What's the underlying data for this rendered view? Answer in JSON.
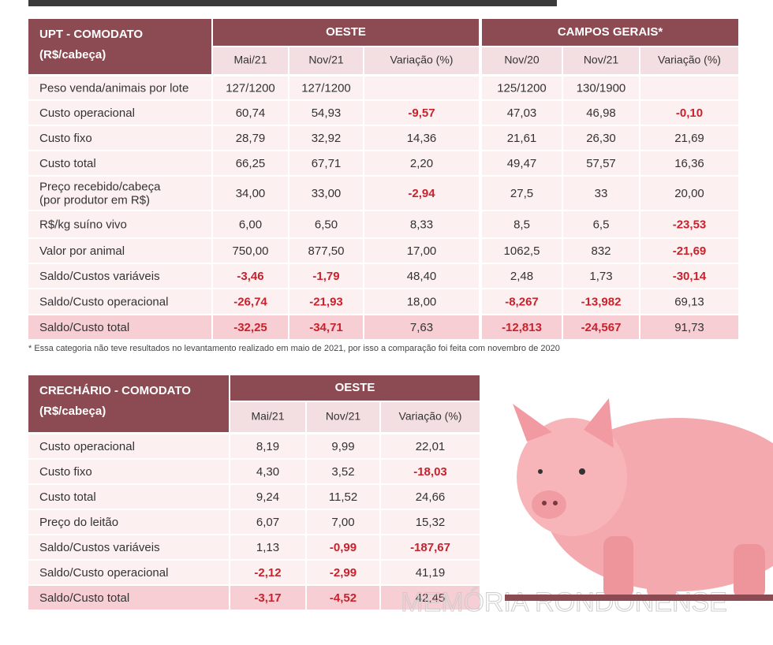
{
  "table1": {
    "title_lines": [
      "UPT - COMODATO",
      "(R$/cabeça)"
    ],
    "groups": [
      "OESTE",
      "CAMPOS GERAIS*"
    ],
    "columns": [
      "Mai/21",
      "Nov/21",
      "Variação (%)",
      "Nov/20",
      "Nov/21",
      "Variação (%)"
    ],
    "rows": [
      {
        "label": [
          "Peso venda/animais por lote"
        ],
        "cells": [
          "127/1200",
          "127/1200",
          null,
          "125/1200",
          "130/1900",
          null
        ]
      },
      {
        "label": [
          "Custo operacional"
        ],
        "cells": [
          "60,74",
          "54,93",
          "-9,57",
          "47,03",
          "46,98",
          "-0,10"
        ]
      },
      {
        "label": [
          "Custo fixo"
        ],
        "cells": [
          "28,79",
          "32,92",
          "14,36",
          "21,61",
          "26,30",
          "21,69"
        ]
      },
      {
        "label": [
          "Custo total"
        ],
        "cells": [
          "66,25",
          "67,71",
          "2,20",
          "49,47",
          "57,57",
          "16,36"
        ]
      },
      {
        "label": [
          "Preço recebido/cabeça",
          "(por produtor em R$)"
        ],
        "cells": [
          "34,00",
          "33,00",
          "-2,94",
          "27,5",
          "33",
          "20,00"
        ]
      },
      {
        "label": [
          "R$/kg suíno vivo"
        ],
        "cells": [
          "6,00",
          "6,50",
          "8,33",
          "8,5",
          "6,5",
          "-23,53"
        ]
      },
      {
        "label": [
          "Valor por animal"
        ],
        "cells": [
          "750,00",
          "877,50",
          "17,00",
          "1062,5",
          "832",
          "-21,69"
        ]
      },
      {
        "label": [
          "Saldo/Custos variáveis"
        ],
        "cells": [
          "-3,46",
          "-1,79",
          "48,40",
          "2,48",
          "1,73",
          "-30,14"
        ]
      },
      {
        "label": [
          "Saldo/Custo operacional"
        ],
        "cells": [
          "-26,74",
          "-21,93",
          "18,00",
          "-8,267",
          "-13,982",
          "69,13"
        ]
      },
      {
        "label": [
          "Saldo/Custo total"
        ],
        "cells": [
          "-32,25",
          "-34,71",
          "7,63",
          "-12,813",
          "-24,567",
          "91,73"
        ]
      }
    ]
  },
  "footnote": "* Essa categoria não teve resultados no levantamento realizado em maio de 2021, por isso a comparação foi feita com novembro de 2020",
  "table2": {
    "title_lines": [
      "CRECHÁRIO - COMODATO",
      "(R$/cabeça)"
    ],
    "groups": [
      "OESTE"
    ],
    "columns": [
      "Mai/21",
      "Nov/21",
      "Variação (%)"
    ],
    "rows": [
      {
        "label": [
          "Custo operacional"
        ],
        "cells": [
          "8,19",
          "9,99",
          "22,01"
        ]
      },
      {
        "label": [
          "Custo fixo"
        ],
        "cells": [
          "4,30",
          "3,52",
          "-18,03"
        ]
      },
      {
        "label": [
          "Custo total"
        ],
        "cells": [
          "9,24",
          "11,52",
          "24,66"
        ]
      },
      {
        "label": [
          "Preço do leitão"
        ],
        "cells": [
          "6,07",
          "7,00",
          "15,32"
        ]
      },
      {
        "label": [
          "Saldo/Custos variáveis"
        ],
        "cells": [
          "1,13",
          "-0,99",
          "-187,67"
        ]
      },
      {
        "label": [
          "Saldo/Custo operacional"
        ],
        "cells": [
          "-2,12",
          "-2,99",
          "41,19"
        ]
      },
      {
        "label": [
          "Saldo/Custo total"
        ],
        "cells": [
          "-3,17",
          "-4,52",
          "42,45"
        ]
      }
    ]
  },
  "watermark": "MEMÓRIA RONDONENSE",
  "negative_color": "#c8222c"
}
